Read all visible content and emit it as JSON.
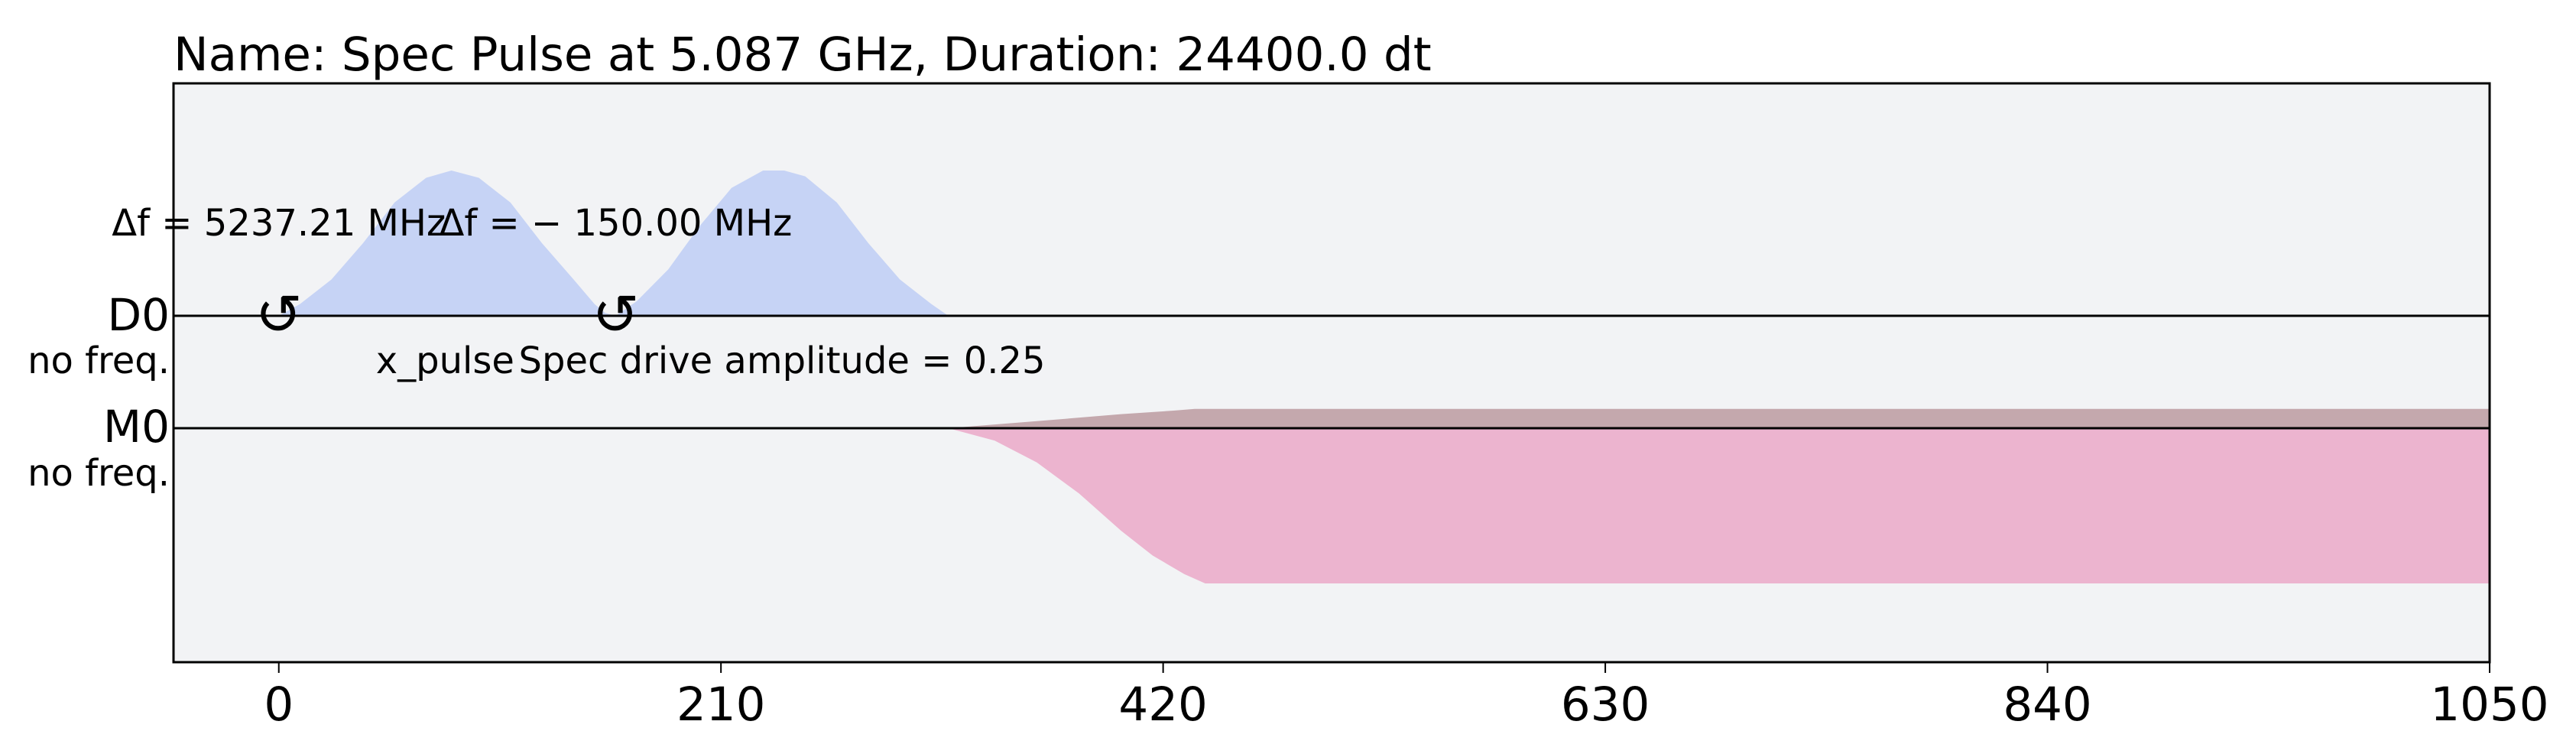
{
  "chart_data": {
    "type": "area",
    "title": "Name: Spec Pulse at 5.087 GHz, Duration: 24400.0 dt",
    "xlabel": "",
    "ylabel": "",
    "xlim": [
      -50,
      1050
    ],
    "grid": false,
    "legend": "none",
    "x_ticks": [
      {
        "value": 0,
        "label": "0"
      },
      {
        "value": 210,
        "label": "210"
      },
      {
        "value": 420,
        "label": "420"
      },
      {
        "value": 630,
        "label": "630"
      },
      {
        "value": 840,
        "label": "840"
      },
      {
        "value": 1050,
        "label": "1050"
      }
    ],
    "channels": [
      {
        "label": "D0",
        "freq_label": "no freq.",
        "color": "#c6d3f5",
        "baseline_only": false,
        "envelopes": [
          {
            "x": [
              0,
              10,
              25,
              40,
              55,
              70,
              82,
              95,
              110,
              125,
              140,
              150,
              155,
              160
            ],
            "y": [
              0,
              0.08,
              0.25,
              0.5,
              0.78,
              0.95,
              1.0,
              0.95,
              0.78,
              0.5,
              0.25,
              0.08,
              0.02,
              0
            ]
          },
          {
            "x": [
              160,
              170,
              185,
              200,
              215,
              230,
              240,
              250,
              265,
              280,
              295,
              310,
              318
            ],
            "y": [
              0,
              0.1,
              0.32,
              0.62,
              0.88,
              1.0,
              1.0,
              0.96,
              0.78,
              0.5,
              0.25,
              0.08,
              0
            ]
          }
        ],
        "frame_changes": [
          {
            "x": 0,
            "symbol": "↺",
            "text": "Δf = 5237.21 MHz"
          },
          {
            "x": 160,
            "symbol": "↺",
            "text": "Δf = − 150.00 MHz"
          }
        ],
        "pulse_labels": [
          {
            "x": 79,
            "text": "x_pulse"
          },
          {
            "x": 239,
            "text": "Spec drive amplitude = 0.25"
          }
        ]
      },
      {
        "label": "M0",
        "freq_label": "no freq.",
        "color": "#ecb4cf",
        "secondary_color": "#c4a8ad",
        "baseline_only": false,
        "envelopes": [
          {
            "x": [
              318,
              340,
              360,
              380,
              400,
              415,
              430,
              440,
              1050
            ],
            "y": [
              0,
              -0.08,
              -0.22,
              -0.42,
              -0.66,
              -0.82,
              -0.94,
              -1.0,
              -1.0
            ]
          }
        ],
        "secondary_envelopes": [
          {
            "x": [
              318,
              360,
              400,
              425,
              435,
              1050
            ],
            "y": [
              0,
              0.04,
              0.08,
              0.1,
              0.11,
              0.11
            ]
          }
        ]
      }
    ]
  }
}
